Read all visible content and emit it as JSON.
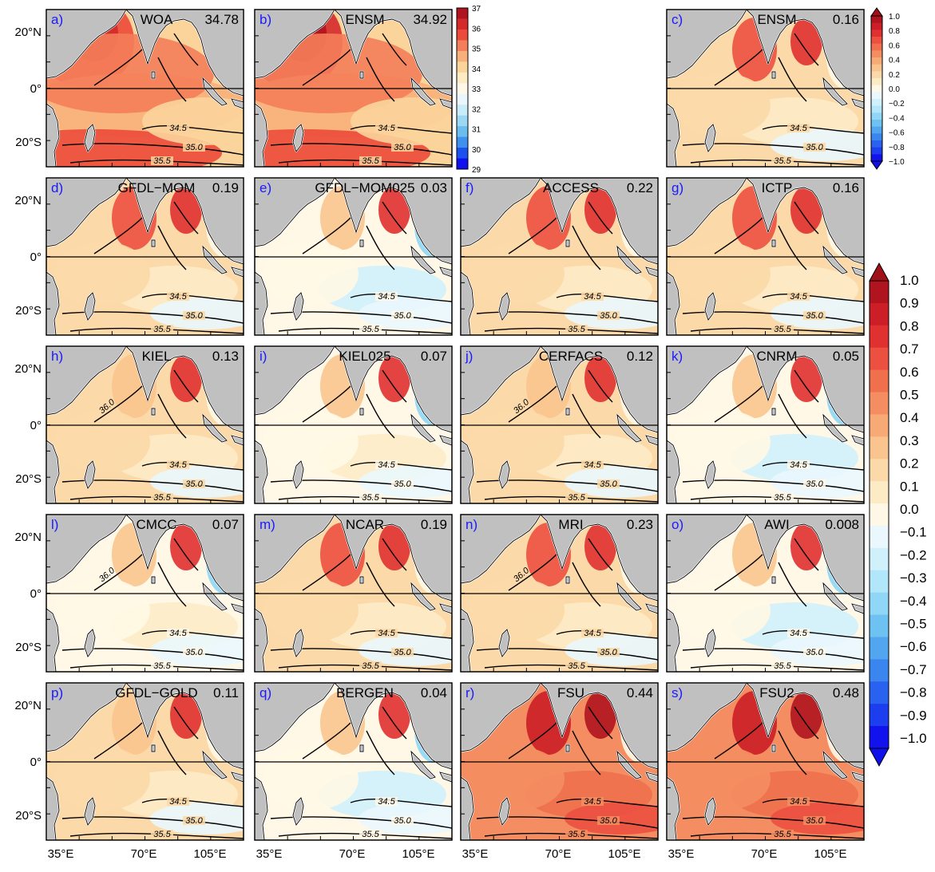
{
  "chart_data": {
    "type": "heatmap",
    "x_ticks": [
      "35°E",
      "70°E",
      "105°E"
    ],
    "y_ticks": [
      "20°N",
      "0°",
      "20°S"
    ],
    "panels": [
      {
        "label": "a)",
        "name": "WOA",
        "value": "34.78",
        "kind": "abs"
      },
      {
        "label": "b)",
        "name": "ENSM",
        "value": "34.92",
        "kind": "abs"
      },
      {
        "label": "c)",
        "name": "ENSM",
        "value": "0.16",
        "kind": "diff"
      },
      {
        "label": "d)",
        "name": "GFDL−MOM",
        "value": "0.19",
        "kind": "diff"
      },
      {
        "label": "e)",
        "name": "GFDL−MOM025",
        "value": "0.03",
        "kind": "diff"
      },
      {
        "label": "f)",
        "name": "ACCESS",
        "value": "0.22",
        "kind": "diff"
      },
      {
        "label": "g)",
        "name": "ICTP",
        "value": "0.16",
        "kind": "diff"
      },
      {
        "label": "h)",
        "name": "KIEL",
        "value": "0.13",
        "kind": "diff"
      },
      {
        "label": "i)",
        "name": "KIEL025",
        "value": "0.07",
        "kind": "diff"
      },
      {
        "label": "j)",
        "name": "CERFACS",
        "value": "0.12",
        "kind": "diff"
      },
      {
        "label": "k)",
        "name": "CNRM",
        "value": "0.05",
        "kind": "diff"
      },
      {
        "label": "l)",
        "name": "CMCC",
        "value": "0.07",
        "kind": "diff"
      },
      {
        "label": "m)",
        "name": "NCAR",
        "value": "0.19",
        "kind": "diff"
      },
      {
        "label": "n)",
        "name": "MRI",
        "value": "0.23",
        "kind": "diff"
      },
      {
        "label": "o)",
        "name": "AWI",
        "value": "0.008",
        "kind": "diff"
      },
      {
        "label": "p)",
        "name": "GFDL−GOLD",
        "value": "0.11",
        "kind": "diff"
      },
      {
        "label": "q)",
        "name": "BERGEN",
        "value": "0.04",
        "kind": "diff"
      },
      {
        "label": "r)",
        "name": "FSU",
        "value": "0.44",
        "kind": "diff"
      },
      {
        "label": "s)",
        "name": "FSU2",
        "value": "0.48",
        "kind": "diff"
      }
    ],
    "contour_labels": [
      "34.5",
      "35.0",
      "35.5",
      "36.0"
    ],
    "colorbar_abs": {
      "ticks": [
        "37",
        "36",
        "35",
        "34",
        "33",
        "32",
        "31",
        "30",
        "29"
      ],
      "colors": [
        "#b0141e",
        "#d42a2a",
        "#ec4a3a",
        "#f47e5a",
        "#f8b07a",
        "#fbd49c",
        "#fdebc4",
        "#fff8e8",
        "#eaf6fc",
        "#c8ecfa",
        "#9cd8f4",
        "#6cbcf0",
        "#4090ee",
        "#1e50ee",
        "#1010f0"
      ]
    },
    "colorbar_diff": {
      "ticks": [
        "1.0",
        "0.9",
        "0.8",
        "0.7",
        "0.6",
        "0.5",
        "0.4",
        "0.3",
        "0.2",
        "0.1",
        "0.0",
        "−0.1",
        "−0.2",
        "−0.3",
        "−0.4",
        "−0.5",
        "−0.6",
        "−0.7",
        "−0.8",
        "−0.9",
        "−1.0"
      ],
      "small_ticks": [
        "1.0",
        "0.8",
        "0.6",
        "0.4",
        "0.2",
        "0.0",
        "−0.2",
        "−0.4",
        "−0.6",
        "−0.8",
        "−1.0"
      ],
      "colors": [
        "#b0141e",
        "#cc1e26",
        "#e03030",
        "#ec5040",
        "#f0704e",
        "#f48e62",
        "#f8aa76",
        "#fac48e",
        "#fcd9a8",
        "#fdebc6",
        "#fff8e6",
        "#eaf7fd",
        "#d0f0fc",
        "#b2e6fa",
        "#90d6f6",
        "#6ec2f2",
        "#52a6f0",
        "#3a86ee",
        "#2862ee",
        "#1c3eee",
        "#1212ee"
      ],
      "under": "#1010e8",
      "over": "#a01018"
    },
    "colors": {
      "land": "#c0c0c0",
      "frame": "#000000",
      "label": "#1a1aff"
    }
  }
}
